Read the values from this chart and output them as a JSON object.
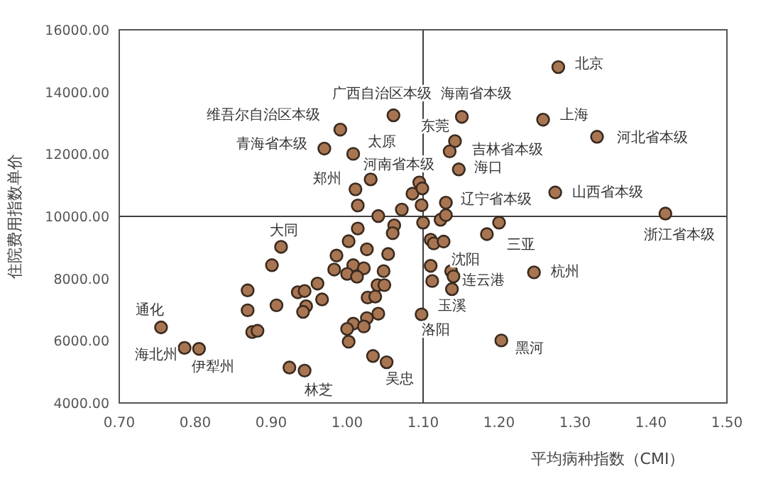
{
  "chart_data": {
    "type": "scatter",
    "xlabel": "平均病种指数（CMI）",
    "ylabel": "住院费用指数单价",
    "x": [
      1.278,
      1.151,
      1.061,
      0.991,
      0.97,
      1.008,
      1.142,
      1.258,
      1.329,
      1.135,
      1.031,
      1.011,
      1.147,
      1.2,
      1.274,
      1.419,
      1.184,
      1.137,
      1.14,
      1.246,
      1.138,
      1.098,
      1.203,
      1.052,
      0.944,
      0.805,
      0.786,
      0.755,
      0.913,
      1.014,
      1.041,
      1.072,
      1.086,
      1.095,
      1.099,
      1.098,
      1.13,
      1.1,
      1.123,
      1.13,
      1.11,
      1.114,
      1.127,
      1.11,
      1.112,
      1.014,
      1.062,
      1.06,
      1.002,
      0.986,
      1.054,
      1.026,
      0.901,
      0.983,
      1.008,
      1.022,
      1.0,
      1.013,
      1.048,
      0.869,
      0.935,
      0.944,
      0.961,
      0.967,
      1.04,
      1.049,
      1.027,
      1.037,
      0.869,
      0.907,
      0.946,
      0.942,
      1.041,
      1.026,
      1.008,
      1.022,
      1.0,
      1.002,
      0.875,
      0.882,
      0.924,
      1.034
    ],
    "series": [
      {
        "color": "#a87552",
        "values": [
          14800,
          13200,
          13250,
          12790,
          12180,
          12010,
          12420,
          13110,
          12560,
          12090,
          11190,
          10870,
          11510,
          9800,
          10770,
          10090,
          9430,
          8240,
          8070,
          8200,
          7660,
          6850,
          6010,
          5310,
          5040,
          5740,
          5770,
          6430,
          9020,
          10350,
          10010,
          10220,
          10730,
          11090,
          10900,
          10360,
          10440,
          9800,
          9890,
          10040,
          9250,
          9130,
          9190,
          8410,
          7920,
          9610,
          9710,
          9460,
          9200,
          8740,
          8790,
          8940,
          8430,
          8290,
          8430,
          8330,
          8150,
          8060,
          8240,
          7620,
          7560,
          7600,
          7840,
          7330,
          7790,
          7790,
          7390,
          7420,
          6980,
          7140,
          7110,
          6930,
          6870,
          6730,
          6550,
          6460,
          6380,
          5970,
          6280,
          6320,
          5140,
          5510
        ]
      }
    ],
    "xlim": [
      0.7,
      1.5
    ],
    "xticks": [
      {
        "value": 0.7,
        "label": "0.70"
      },
      {
        "value": 0.8,
        "label": "0.80"
      },
      {
        "value": 0.9,
        "label": "0.90"
      },
      {
        "value": 1.0,
        "label": "1.00"
      },
      {
        "value": 1.1,
        "label": "1.10"
      },
      {
        "value": 1.2,
        "label": "1.20"
      },
      {
        "value": 1.3,
        "label": "1.30"
      },
      {
        "value": 1.4,
        "label": "1.40"
      },
      {
        "value": 1.5,
        "label": "1.50"
      }
    ],
    "ylim": [
      4000,
      16000
    ],
    "yticks": [
      {
        "value": 4000,
        "label": "4000.00"
      },
      {
        "value": 6000,
        "label": "6000.00"
      },
      {
        "value": 8000,
        "label": "8000.00"
      },
      {
        "value": 10000,
        "label": "10000.00"
      },
      {
        "value": 12000,
        "label": "12000.00"
      },
      {
        "value": 14000,
        "label": "14000.00"
      },
      {
        "value": 16000,
        "label": "16000.00"
      }
    ],
    "grid": false,
    "marker": "circle",
    "ref_lines": [
      {
        "axis": "x",
        "value": 1.1,
        "color": "#404040"
      },
      {
        "axis": "y",
        "value": 10000,
        "color": "#404040"
      }
    ],
    "annotations": [
      {
        "text": "北京",
        "x": 1.278,
        "y": 14800
      },
      {
        "text": "海南省本级",
        "x": 1.151,
        "y": 13200
      },
      {
        "text": "广西自治区本级",
        "x": 1.061,
        "y": 13250
      },
      {
        "text": "维吾尔自治区本级",
        "x": 0.991,
        "y": 12790
      },
      {
        "text": "青海省本级",
        "x": 0.97,
        "y": 12180
      },
      {
        "text": "太原",
        "x": 1.008,
        "y": 12010
      },
      {
        "text": "东莞",
        "x": 1.142,
        "y": 12420
      },
      {
        "text": "上海",
        "x": 1.258,
        "y": 13110
      },
      {
        "text": "河北省本级",
        "x": 1.329,
        "y": 12560
      },
      {
        "text": "吉林省本级",
        "x": 1.135,
        "y": 12090
      },
      {
        "text": "河南省本级",
        "x": 1.031,
        "y": 11190
      },
      {
        "text": "郑州",
        "x": 1.011,
        "y": 10870
      },
      {
        "text": "海口",
        "x": 1.147,
        "y": 11510
      },
      {
        "text": "辽宁省本级",
        "x": 1.2,
        "y": 9800
      },
      {
        "text": "山西省本级",
        "x": 1.274,
        "y": 10770
      },
      {
        "text": "浙江省本级",
        "x": 1.419,
        "y": 10090
      },
      {
        "text": "三亚",
        "x": 1.184,
        "y": 9430
      },
      {
        "text": "沈阳",
        "x": 1.137,
        "y": 8240
      },
      {
        "text": "连云港",
        "x": 1.14,
        "y": 8070
      },
      {
        "text": "杭州",
        "x": 1.246,
        "y": 8200
      },
      {
        "text": "玉溪",
        "x": 1.138,
        "y": 7660
      },
      {
        "text": "洛阳",
        "x": 1.098,
        "y": 6850
      },
      {
        "text": "黑河",
        "x": 1.203,
        "y": 6010
      },
      {
        "text": "吴忠",
        "x": 1.052,
        "y": 5310
      },
      {
        "text": "林芝",
        "x": 0.944,
        "y": 5040
      },
      {
        "text": "伊犁州",
        "x": 0.805,
        "y": 5740
      },
      {
        "text": "海北州",
        "x": 0.786,
        "y": 5770
      },
      {
        "text": "通化",
        "x": 0.755,
        "y": 6430
      },
      {
        "text": "大同",
        "x": 0.913,
        "y": 9020
      }
    ]
  }
}
